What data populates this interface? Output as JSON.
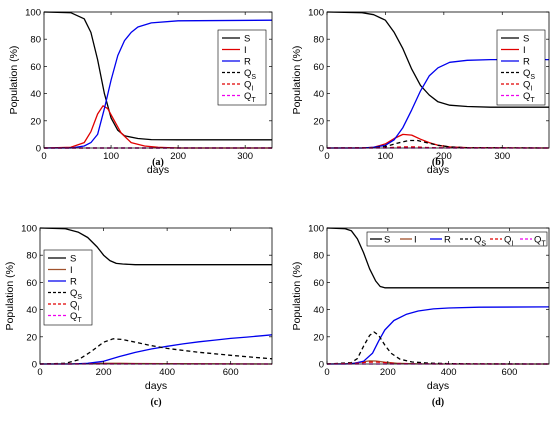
{
  "chart_data": [
    {
      "panel_label": "(a)",
      "type": "line",
      "xlabel": "days",
      "ylabel": "Population (%)",
      "xlim": [
        0,
        340
      ],
      "ylim": [
        0,
        100
      ],
      "xticks": [
        0,
        100,
        200,
        300
      ],
      "yticks": [
        0,
        20,
        40,
        60,
        80,
        100
      ],
      "legend_position": "right-center",
      "legend_layout": "vertical",
      "series": [
        {
          "name": "S",
          "main": "S",
          "sub": "",
          "color": "#000000",
          "dash": "solid",
          "x": [
            0,
            40,
            60,
            70,
            80,
            90,
            100,
            110,
            120,
            140,
            160,
            200,
            250,
            340
          ],
          "y": [
            100,
            99.5,
            95,
            85,
            65,
            40,
            22,
            13,
            9,
            7,
            6.2,
            6,
            6,
            6
          ]
        },
        {
          "name": "I",
          "main": "I",
          "sub": "",
          "color": "#e00000",
          "dash": "solid",
          "x": [
            0,
            40,
            60,
            70,
            80,
            88,
            95,
            105,
            115,
            130,
            150,
            170,
            200,
            340
          ],
          "y": [
            0,
            0.5,
            4,
            12,
            25,
            31,
            29,
            20,
            11,
            4,
            1.5,
            0.5,
            0,
            0
          ]
        },
        {
          "name": "R",
          "main": "R",
          "sub": "",
          "color": "#0000ee",
          "dash": "solid",
          "x": [
            0,
            40,
            60,
            70,
            80,
            90,
            100,
            110,
            120,
            130,
            140,
            160,
            200,
            340
          ],
          "y": [
            0,
            0,
            1.5,
            4,
            10,
            29,
            50,
            68,
            79,
            85,
            89,
            92,
            93.5,
            94
          ]
        },
        {
          "name": "QS",
          "main": "Q",
          "sub": "S",
          "color": "#000000",
          "dash": "dashed",
          "x": [
            0,
            340
          ],
          "y": [
            0,
            0
          ]
        },
        {
          "name": "QI",
          "main": "Q",
          "sub": "I",
          "color": "#e00000",
          "dash": "dashed",
          "x": [
            0,
            340
          ],
          "y": [
            0,
            0
          ]
        },
        {
          "name": "QT",
          "main": "Q",
          "sub": "T",
          "color": "#ee00ee",
          "dash": "dashed",
          "x": [
            0,
            340
          ],
          "y": [
            0,
            0
          ]
        }
      ]
    },
    {
      "panel_label": "(b)",
      "type": "line",
      "xlabel": "days",
      "ylabel": "Population (%)",
      "xlim": [
        0,
        380
      ],
      "ylim": [
        0,
        100
      ],
      "xticks": [
        0,
        100,
        200,
        300
      ],
      "yticks": [
        0,
        20,
        40,
        60,
        80,
        100
      ],
      "legend_position": "top-right",
      "legend_layout": "vertical",
      "series": [
        {
          "name": "S",
          "main": "S",
          "sub": "",
          "color": "#000000",
          "dash": "solid",
          "x": [
            0,
            60,
            80,
            100,
            115,
            130,
            145,
            160,
            175,
            190,
            210,
            240,
            280,
            380
          ],
          "y": [
            100,
            99.5,
            98,
            94,
            85,
            73,
            58,
            46,
            39,
            34,
            31.5,
            30.5,
            30,
            30
          ]
        },
        {
          "name": "I",
          "main": "I",
          "sub": "",
          "color": "#e00000",
          "dash": "solid",
          "x": [
            0,
            60,
            80,
            100,
            115,
            130,
            145,
            160,
            175,
            190,
            210,
            240,
            380
          ],
          "y": [
            0,
            0,
            0.5,
            3,
            7,
            10,
            9.5,
            6.5,
            4,
            2,
            0.8,
            0.2,
            0
          ]
        },
        {
          "name": "R",
          "main": "R",
          "sub": "",
          "color": "#0000ee",
          "dash": "solid",
          "x": [
            0,
            60,
            80,
            100,
            115,
            130,
            145,
            160,
            175,
            190,
            210,
            240,
            280,
            380
          ],
          "y": [
            0,
            0,
            0.5,
            2,
            6,
            15,
            28,
            42,
            53,
            59,
            63,
            64.5,
            65,
            65
          ]
        },
        {
          "name": "QS",
          "main": "Q",
          "sub": "S",
          "color": "#000000",
          "dash": "dashed",
          "x": [
            0,
            80,
            100,
            120,
            140,
            155,
            170,
            190,
            210,
            240,
            380
          ],
          "y": [
            0,
            0.2,
            1,
            3.5,
            5.5,
            5.5,
            4,
            2,
            0.8,
            0.2,
            0
          ]
        },
        {
          "name": "QI",
          "main": "Q",
          "sub": "I",
          "color": "#e00000",
          "dash": "dashed",
          "x": [
            0,
            90,
            110,
            130,
            150,
            170,
            200,
            380
          ],
          "y": [
            0,
            0.1,
            0.4,
            0.8,
            0.8,
            0.4,
            0.1,
            0
          ]
        },
        {
          "name": "QT",
          "main": "Q",
          "sub": "T",
          "color": "#ee00ee",
          "dash": "dashed",
          "x": [
            0,
            380
          ],
          "y": [
            0,
            0
          ]
        }
      ]
    },
    {
      "panel_label": "(c)",
      "type": "line",
      "xlabel": "days",
      "ylabel": "Population (%)",
      "xlim": [
        0,
        730
      ],
      "ylim": [
        0,
        100
      ],
      "xticks": [
        0,
        200,
        400,
        600
      ],
      "yticks": [
        0,
        20,
        40,
        60,
        80,
        100
      ],
      "legend_position": "top-left",
      "legend_layout": "vertical",
      "series": [
        {
          "name": "S",
          "main": "S",
          "sub": "",
          "color": "#000000",
          "dash": "solid",
          "x": [
            0,
            80,
            120,
            150,
            180,
            200,
            220,
            240,
            260,
            300,
            400,
            730
          ],
          "y": [
            100,
            99.5,
            97,
            93,
            86,
            80,
            76,
            74,
            73.5,
            73,
            73,
            73
          ]
        },
        {
          "name": "I",
          "main": "I",
          "sub": "",
          "color": "#a0522d",
          "dash": "solid",
          "x": [
            0,
            100,
            150,
            200,
            250,
            300,
            400,
            730
          ],
          "y": [
            0,
            0.1,
            0.3,
            0.5,
            0.5,
            0.4,
            0.2,
            0
          ]
        },
        {
          "name": "R",
          "main": "R",
          "sub": "",
          "color": "#0000ee",
          "dash": "solid",
          "x": [
            0,
            100,
            150,
            200,
            250,
            300,
            350,
            400,
            450,
            500,
            550,
            600,
            650,
            700,
            730
          ],
          "y": [
            0,
            0,
            0.5,
            2,
            5.5,
            8.5,
            11,
            13,
            14.8,
            16.3,
            17.6,
            18.8,
            19.8,
            20.8,
            21.5
          ]
        },
        {
          "name": "QS",
          "main": "Q",
          "sub": "S",
          "color": "#000000",
          "dash": "dashed",
          "x": [
            0,
            80,
            120,
            160,
            200,
            230,
            260,
            300,
            350,
            400,
            450,
            500,
            550,
            600,
            650,
            700,
            730
          ],
          "y": [
            0,
            0.5,
            3,
            9,
            16,
            18.5,
            18,
            16,
            13.5,
            11.5,
            10,
            8.6,
            7.5,
            6.4,
            5.4,
            4.4,
            3.8
          ]
        },
        {
          "name": "QI",
          "main": "Q",
          "sub": "I",
          "color": "#e00000",
          "dash": "dashed",
          "x": [
            0,
            150,
            230,
            300,
            400,
            730
          ],
          "y": [
            0,
            0.1,
            0.3,
            0.2,
            0.1,
            0
          ]
        },
        {
          "name": "QT",
          "main": "Q",
          "sub": "T",
          "color": "#ee00ee",
          "dash": "dashed",
          "x": [
            0,
            730
          ],
          "y": [
            0,
            0
          ]
        }
      ]
    },
    {
      "panel_label": "(d)",
      "type": "line",
      "xlabel": "days",
      "ylabel": "Population (%)",
      "xlim": [
        0,
        730
      ],
      "ylim": [
        0,
        100
      ],
      "xticks": [
        0,
        200,
        400,
        600
      ],
      "yticks": [
        0,
        20,
        40,
        60,
        80,
        100
      ],
      "legend_position": "top-right",
      "legend_layout": "horizontal",
      "series": [
        {
          "name": "S",
          "main": "S",
          "sub": "",
          "color": "#000000",
          "dash": "solid",
          "x": [
            0,
            60,
            80,
            100,
            120,
            140,
            160,
            175,
            190,
            210,
            240,
            300,
            730
          ],
          "y": [
            100,
            99.5,
            98,
            92,
            82,
            70,
            61,
            57,
            56,
            56,
            56,
            56,
            56
          ]
        },
        {
          "name": "I",
          "main": "I",
          "sub": "",
          "color": "#a0522d",
          "dash": "solid",
          "x": [
            0,
            80,
            110,
            140,
            160,
            190,
            230,
            300,
            730
          ],
          "y": [
            0,
            0.3,
            1.3,
            2.3,
            2.2,
            1.3,
            0.5,
            0.1,
            0
          ]
        },
        {
          "name": "R",
          "main": "R",
          "sub": "",
          "color": "#0000ee",
          "dash": "solid",
          "x": [
            0,
            60,
            90,
            120,
            150,
            170,
            190,
            220,
            260,
            300,
            350,
            400,
            500,
            730
          ],
          "y": [
            0,
            0,
            0.5,
            2,
            8,
            17,
            25,
            32,
            36.5,
            39,
            40.5,
            41.2,
            41.8,
            42
          ]
        },
        {
          "name": "QS",
          "main": "Q",
          "sub": "S",
          "color": "#000000",
          "dash": "dashed",
          "x": [
            0,
            80,
            100,
            120,
            140,
            155,
            170,
            190,
            210,
            240,
            280,
            330,
            400,
            500,
            730
          ],
          "y": [
            0,
            1,
            4,
            13,
            21,
            23.5,
            21,
            14,
            8,
            3.5,
            1.5,
            0.7,
            0.3,
            0.1,
            0
          ]
        },
        {
          "name": "QI",
          "main": "Q",
          "sub": "I",
          "color": "#e00000",
          "dash": "dashed",
          "x": [
            0,
            100,
            130,
            160,
            190,
            230,
            300,
            730
          ],
          "y": [
            0,
            0.5,
            1.3,
            1.5,
            1,
            0.4,
            0.1,
            0
          ]
        },
        {
          "name": "QT",
          "main": "Q",
          "sub": "T",
          "color": "#ee00ee",
          "dash": "dashed",
          "x": [
            0,
            730
          ],
          "y": [
            0,
            0
          ]
        }
      ]
    }
  ]
}
